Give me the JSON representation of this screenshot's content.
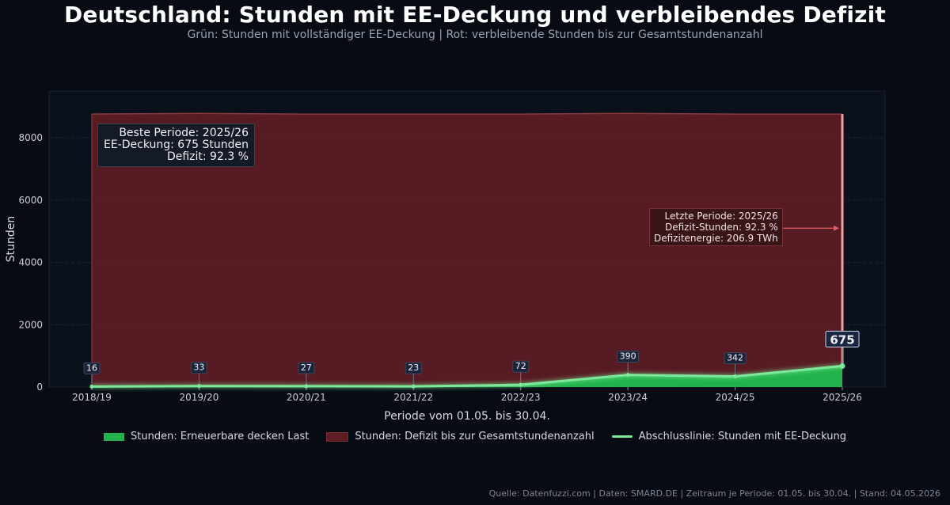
{
  "title": "Deutschland: Stunden mit EE-Deckung und verbleibendes Defizit",
  "subtitle": "Grün: Stunden mit vollständiger EE-Deckung | Rot: verbleibende Stunden bis zur Gesamtstundenanzahl",
  "chart_data": {
    "type": "area",
    "categories": [
      "2018/19",
      "2019/20",
      "2020/21",
      "2021/22",
      "2022/23",
      "2023/24",
      "2024/25",
      "2025/26"
    ],
    "series": [
      {
        "name": "Stunden: Erneuerbare decken Last",
        "values": [
          16,
          33,
          27,
          23,
          72,
          390,
          342,
          675
        ],
        "color": "#22b24c"
      },
      {
        "name": "Stunden: Defizit bis zur Gesamtstundenanzahl",
        "values": [
          8744,
          8751,
          8733,
          8737,
          8688,
          8394,
          8418,
          8085
        ],
        "color": "#5c1e24"
      },
      {
        "name": "Abschlusslinie: Stunden mit EE-Deckung",
        "values": [
          16,
          33,
          27,
          23,
          72,
          390,
          342,
          675
        ],
        "color": "#7ee89a"
      }
    ],
    "totals": [
      8760,
      8784,
      8760,
      8760,
      8760,
      8784,
      8760,
      8760
    ],
    "point_labels": [
      "16",
      "33",
      "27",
      "23",
      "72",
      "390",
      "342",
      "675"
    ],
    "xlabel": "Periode vom 01.05. bis 30.04.",
    "ylabel": "Stunden",
    "ylim": [
      0,
      9500
    ],
    "yticks": [
      0,
      2000,
      4000,
      6000,
      8000
    ],
    "grid": true,
    "legend": "bottom-center"
  },
  "annotations": {
    "best": [
      "Beste Periode: 2025/26",
      "EE-Deckung: 675 Stunden",
      "Defizit: 92.3 %"
    ],
    "latest": [
      "Letzte Periode: 2025/26",
      "Defizit-Stunden: 92.3 %",
      "Defizitenergie: 206.9 TWh"
    ],
    "latest_arrow_y": 5100
  },
  "source": "Quelle: Datenfuzzi.com | Daten: SMARD.DE | Zeitraum je Periode: 01.05. bis 30.04. | Stand: 04.05.2026",
  "colors": {
    "background": "#070b13",
    "plot_bg": "#0b111b",
    "green_fill": "#22b24c",
    "green_line": "#7ee89a",
    "red_fill": "#5c1e24",
    "red_edge": "#e57373",
    "arrow": "#e0605d"
  }
}
